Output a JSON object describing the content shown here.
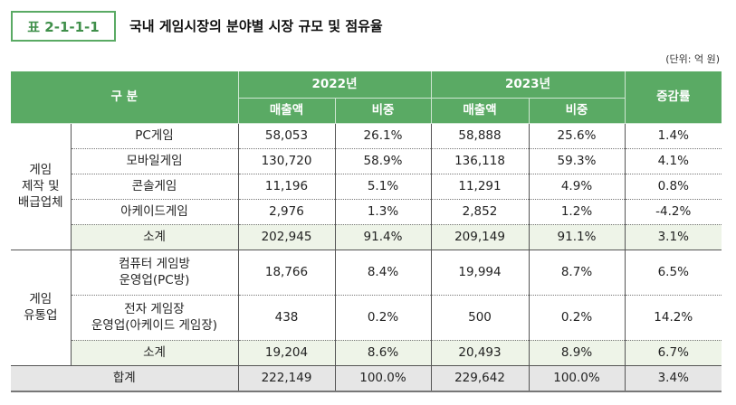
{
  "tag": "표 2-1-1-1",
  "title": "국내 게임시장의 분야별 시장 규모 및 점유율",
  "unit": "(단위: 억 원)",
  "header": {
    "category": "구 분",
    "y2022": "2022년",
    "y2023": "2023년",
    "growth": "증감률",
    "sales": "매출액",
    "share": "비중"
  },
  "groups": [
    {
      "label": "게임\n제작 및\n배급업체",
      "rows": [
        {
          "name": "PC게임",
          "s22": "58,053",
          "p22": "26.1%",
          "s23": "58,888",
          "p23": "25.6%",
          "g": "1.4%"
        },
        {
          "name": "모바일게임",
          "s22": "130,720",
          "p22": "58.9%",
          "s23": "136,118",
          "p23": "59.3%",
          "g": "4.1%"
        },
        {
          "name": "콘솔게임",
          "s22": "11,196",
          "p22": "5.1%",
          "s23": "11,291",
          "p23": "4.9%",
          "g": "0.8%"
        },
        {
          "name": "아케이드게임",
          "s22": "2,976",
          "p22": "1.3%",
          "s23": "2,852",
          "p23": "1.2%",
          "g": "-4.2%"
        },
        {
          "name": "소계",
          "s22": "202,945",
          "p22": "91.4%",
          "s23": "209,149",
          "p23": "91.1%",
          "g": "3.1%"
        }
      ]
    },
    {
      "label": "게임\n유통업",
      "rows": [
        {
          "name": "컴퓨터 게임방\n운영업(PC방)",
          "s22": "18,766",
          "p22": "8.4%",
          "s23": "19,994",
          "p23": "8.7%",
          "g": "6.5%"
        },
        {
          "name": "전자 게임장\n운영업(아케이드 게임장)",
          "s22": "438",
          "p22": "0.2%",
          "s23": "500",
          "p23": "0.2%",
          "g": "14.2%"
        },
        {
          "name": "소계",
          "s22": "19,204",
          "p22": "8.6%",
          "s23": "20,493",
          "p23": "8.9%",
          "g": "6.7%"
        }
      ]
    }
  ],
  "total": {
    "name": "합계",
    "s22": "222,149",
    "p22": "100.0%",
    "s23": "229,642",
    "p23": "100.0%",
    "g": "3.4%"
  }
}
